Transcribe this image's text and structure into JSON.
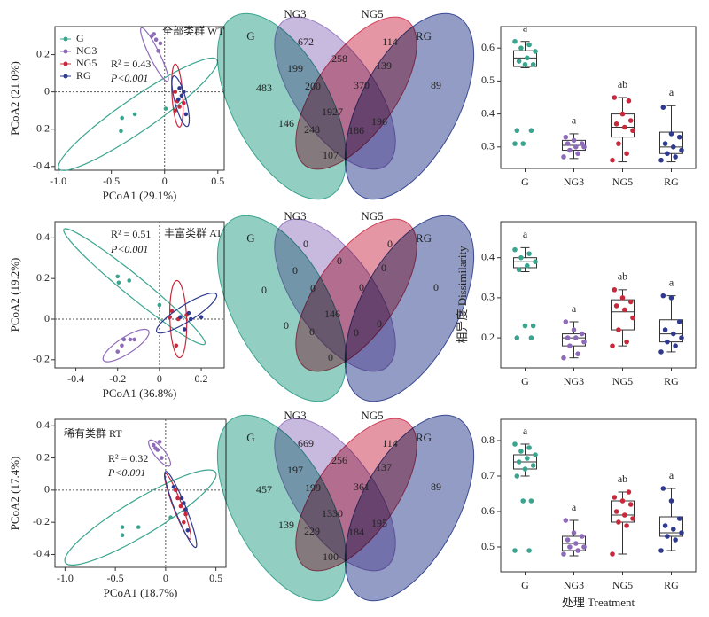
{
  "chart_data": [
    {
      "type": "scatter",
      "xlabel": "PCoA1 (29.1%)",
      "ylabel": "PCoA2 (21.0%)",
      "annotations": [
        "全部类群 WT",
        "R² = 0.43",
        "P<0.001"
      ],
      "legend": "top-left",
      "xlim": [
        -1.03,
        0.56
      ],
      "ylim": [
        -0.42,
        0.35
      ],
      "xticks": [
        {
          "value": -1.0,
          "label": "-1.0"
        },
        -0.5,
        0,
        0.5
      ],
      "yticks": [
        -0.4,
        -0.2,
        0,
        0.2
      ],
      "vline": 0,
      "hline": 0,
      "series": [
        {
          "name": "G",
          "color": "#3aa58f",
          "x": [
            -0.4,
            -0.28,
            -0.41,
            0.01
          ],
          "y": [
            -0.14,
            -0.12,
            -0.21,
            -0.09
          ],
          "ellipse": {
            "cx": -0.25,
            "cy": -0.12,
            "rx": 0.8,
            "ry": 0.1,
            "angle": 21
          }
        },
        {
          "name": "NG3",
          "color": "#8e6bb8",
          "x": [
            -0.12,
            -0.08,
            -0.04,
            -0.1,
            -0.06
          ],
          "y": [
            0.3,
            0.28,
            0.26,
            0.31,
            0.22
          ],
          "ellipse": {
            "cx": -0.095,
            "cy": 0.2,
            "rx": 0.19,
            "ry": 0.04,
            "angle": -48
          }
        },
        {
          "name": "NG5",
          "color": "#c8283b",
          "x": [
            0.1,
            0.12,
            0.14,
            0.1,
            0.18
          ],
          "y": [
            0.0,
            -0.05,
            -0.08,
            -0.1,
            -0.06
          ],
          "ellipse": {
            "cx": 0.12,
            "cy": -0.02,
            "rx": 0.17,
            "ry": 0.05,
            "angle": -83
          }
        },
        {
          "name": "RG",
          "color": "#2f3a8f",
          "x": [
            0.14,
            0.16,
            0.2,
            0.18,
            0.13
          ],
          "y": [
            0.02,
            -0.02,
            -0.12,
            0.0,
            -0.04
          ],
          "ellipse": {
            "cx": 0.15,
            "cy": -0.05,
            "rx": 0.15,
            "ry": 0.05,
            "angle": -63
          }
        }
      ]
    },
    {
      "type": "venn",
      "sets": [
        "G",
        "NG3",
        "NG5",
        "RG"
      ],
      "colors": [
        "#3aa58f",
        "#9b7fc4",
        "#d0405a",
        "#3b4a94"
      ],
      "values": [
        483,
        672,
        114,
        89,
        199,
        258,
        139,
        200,
        370,
        1927,
        146,
        196,
        248,
        186,
        107
      ]
    },
    {
      "type": "box",
      "categories": [
        "G",
        "NG3",
        "NG5",
        "RG"
      ],
      "colors": [
        "#3aa58f",
        "#8e6bb8",
        "#c8283b",
        "#2f3a8f"
      ],
      "ylim": [
        0.235,
        0.665
      ],
      "yticks": [
        0.3,
        0.4,
        0.5,
        0.6
      ],
      "boxes": [
        {
          "q1": 0.544,
          "median": 0.57,
          "q3": 0.592,
          "whisker_low": 0.54,
          "whisker_high": 0.62,
          "points": [
            0.62,
            0.61,
            0.6,
            0.59,
            0.57,
            0.56,
            0.55,
            0.55,
            0.35,
            0.35,
            0.31,
            0.31
          ],
          "letter": "a"
        },
        {
          "q1": 0.29,
          "median": 0.305,
          "q3": 0.32,
          "whisker_low": 0.265,
          "whisker_high": 0.34,
          "points": [
            0.27,
            0.28,
            0.29,
            0.3,
            0.3,
            0.31,
            0.31,
            0.32,
            0.33
          ],
          "letter": "a"
        },
        {
          "q1": 0.33,
          "median": 0.36,
          "q3": 0.4,
          "whisker_low": 0.255,
          "whisker_high": 0.45,
          "points": [
            0.26,
            0.28,
            0.31,
            0.35,
            0.36,
            0.37,
            0.38,
            0.4,
            0.45,
            0.44
          ],
          "letter": "ab"
        },
        {
          "q1": 0.28,
          "median": 0.3,
          "q3": 0.345,
          "whisker_low": 0.255,
          "whisker_high": 0.425,
          "points": [
            0.26,
            0.27,
            0.28,
            0.29,
            0.3,
            0.31,
            0.33,
            0.34,
            0.42
          ],
          "letter": "a"
        }
      ]
    },
    {
      "type": "scatter",
      "xlabel": "PCoA1 (36.8%)",
      "ylabel": "PCoA2 (19.2%)",
      "annotations": [
        "丰富类群 AT",
        "R² = 0.51",
        "P<0.001"
      ],
      "xlim": [
        -0.5,
        0.31
      ],
      "ylim": [
        -0.24,
        0.48
      ],
      "xticks": [
        -0.4,
        -0.2,
        0,
        0.2
      ],
      "yticks": [
        -0.2,
        0,
        0.2,
        0.4
      ],
      "vline": 0,
      "hline": 0,
      "series": [
        {
          "color": "#3aa58f",
          "x": [
            -0.2,
            -0.195,
            -0.145,
            0.0
          ],
          "y": [
            0.21,
            0.18,
            0.19,
            0.07
          ],
          "ellipse": {
            "cx": -0.12,
            "cy": 0.16,
            "rx": 0.44,
            "ry": 0.05,
            "angle": -40
          }
        },
        {
          "color": "#8e6bb8",
          "x": [
            -0.17,
            -0.14,
            -0.12,
            -0.2,
            -0.18
          ],
          "y": [
            -0.1,
            -0.1,
            -0.1,
            -0.16,
            -0.13
          ],
          "ellipse": {
            "cx": -0.16,
            "cy": -0.13,
            "rx": 0.13,
            "ry": 0.04,
            "angle": 34
          }
        },
        {
          "color": "#c8283b",
          "x": [
            0.06,
            0.08,
            0.09,
            0.13,
            0.05
          ],
          "y": [
            0.04,
            -0.13,
            0.0,
            0.02,
            0.01
          ],
          "ellipse": {
            "cx": 0.09,
            "cy": 0.0,
            "rx": 0.19,
            "ry": 0.04,
            "angle": -88
          }
        },
        {
          "color": "#2f3a8f",
          "x": [
            0.1,
            0.15,
            0.2,
            0.12,
            0.14
          ],
          "y": [
            0.01,
            0.0,
            0.01,
            -0.05,
            0.03
          ],
          "ellipse": {
            "cx": 0.13,
            "cy": 0.03,
            "rx": 0.17,
            "ry": 0.04,
            "angle": 33
          }
        }
      ]
    },
    {
      "type": "venn",
      "sets": [
        "G",
        "NG3",
        "NG5",
        "RG"
      ],
      "colors": [
        "#3aa58f",
        "#9b7fc4",
        "#d0405a",
        "#3b4a94"
      ],
      "values": [
        0,
        0,
        0,
        0,
        0,
        0,
        0,
        0,
        0,
        146,
        0,
        0,
        0,
        0,
        0
      ]
    },
    {
      "type": "box",
      "categories": [
        "G",
        "NG3",
        "NG5",
        "RG"
      ],
      "colors": [
        "#3aa58f",
        "#8e6bb8",
        "#c8283b",
        "#2f3a8f"
      ],
      "ylabel": "相异度  Dissimilarity",
      "ylim": [
        0.125,
        0.49
      ],
      "yticks": [
        0.2,
        0.3,
        0.4
      ],
      "boxes": [
        {
          "q1": 0.375,
          "median": 0.39,
          "q3": 0.4,
          "whisker_low": 0.365,
          "whisker_high": 0.425,
          "points": [
            0.42,
            0.41,
            0.4,
            0.39,
            0.38,
            0.37,
            0.23,
            0.23,
            0.2,
            0.2
          ],
          "letter": "a"
        },
        {
          "q1": 0.18,
          "median": 0.2,
          "q3": 0.21,
          "whisker_low": 0.15,
          "whisker_high": 0.24,
          "points": [
            0.15,
            0.16,
            0.18,
            0.19,
            0.2,
            0.2,
            0.21,
            0.22,
            0.24
          ],
          "letter": "a"
        },
        {
          "q1": 0.22,
          "median": 0.265,
          "q3": 0.295,
          "whisker_low": 0.18,
          "whisker_high": 0.32,
          "points": [
            0.18,
            0.19,
            0.22,
            0.25,
            0.27,
            0.28,
            0.29,
            0.3,
            0.32
          ],
          "letter": "ab"
        },
        {
          "q1": 0.19,
          "median": 0.21,
          "q3": 0.245,
          "whisker_low": 0.165,
          "whisker_high": 0.305,
          "points": [
            0.165,
            0.18,
            0.19,
            0.2,
            0.21,
            0.22,
            0.24,
            0.3,
            0.305
          ],
          "letter": "a"
        }
      ]
    },
    {
      "type": "scatter",
      "xlabel": "PCoA1 (18.7%)",
      "ylabel": "PCoA2 (17.4%)",
      "annotations": [
        "稀有类群 RT",
        "R² = 0.32",
        "P<0.001"
      ],
      "xlim": [
        -1.1,
        0.6
      ],
      "ylim": [
        -0.48,
        0.44
      ],
      "xticks": [
        {
          "value": -1.0,
          "label": "-1.0"
        },
        -0.5,
        0,
        0.5
      ],
      "yticks": [
        -0.4,
        -0.2,
        0,
        0.2,
        0.4
      ],
      "vline": 0,
      "hline": 0,
      "series": [
        {
          "color": "#3aa58f",
          "x": [
            -0.43,
            -0.27,
            -0.43,
            0.05
          ],
          "y": [
            -0.23,
            -0.23,
            -0.28,
            -0.17
          ],
          "ellipse": {
            "cx": -0.25,
            "cy": -0.17,
            "rx": 0.8,
            "ry": 0.12,
            "angle": 20
          }
        },
        {
          "color": "#8e6bb8",
          "x": [
            -0.12,
            -0.08,
            -0.06,
            -0.04,
            -0.1
          ],
          "y": [
            0.28,
            0.25,
            0.3,
            0.2,
            0.26
          ],
          "ellipse": {
            "cx": -0.06,
            "cy": 0.23,
            "rx": 0.13,
            "ry": 0.04,
            "angle": -35
          }
        },
        {
          "color": "#c8283b",
          "x": [
            0.1,
            0.12,
            0.15,
            0.2,
            0.18
          ],
          "y": [
            0.0,
            -0.05,
            -0.1,
            -0.15,
            -0.2
          ],
          "ellipse": {
            "cx": 0.12,
            "cy": -0.1,
            "rx": 0.24,
            "ry": 0.04,
            "angle": -58
          }
        },
        {
          "color": "#2f3a8f",
          "x": [
            0.08,
            0.16,
            0.18,
            0.2,
            0.22
          ],
          "y": [
            0.02,
            -0.05,
            -0.08,
            -0.12,
            -0.25
          ],
          "ellipse": {
            "cx": 0.15,
            "cy": -0.12,
            "rx": 0.28,
            "ry": 0.05,
            "angle": -57
          }
        }
      ]
    },
    {
      "type": "venn",
      "sets": [
        "G",
        "NG3",
        "NG5",
        "RG"
      ],
      "colors": [
        "#3aa58f",
        "#9b7fc4",
        "#d0405a",
        "#3b4a94"
      ],
      "values": [
        457,
        669,
        114,
        89,
        197,
        256,
        137,
        199,
        361,
        1330,
        139,
        195,
        229,
        184,
        100
      ]
    },
    {
      "type": "box",
      "categories": [
        "G",
        "NG3",
        "NG5",
        "RG"
      ],
      "colors": [
        "#3aa58f",
        "#8e6bb8",
        "#c8283b",
        "#2f3a8f"
      ],
      "xlabel": "处理 Treatment",
      "ylim": [
        0.43,
        0.86
      ],
      "yticks": [
        0.5,
        0.6,
        0.7,
        0.8
      ],
      "boxes": [
        {
          "q1": 0.72,
          "median": 0.74,
          "q3": 0.76,
          "whisker_low": 0.7,
          "whisker_high": 0.79,
          "points": [
            0.79,
            0.78,
            0.77,
            0.76,
            0.75,
            0.74,
            0.73,
            0.72,
            0.7,
            0.63,
            0.63,
            0.49,
            0.49
          ],
          "letter": "a"
        },
        {
          "q1": 0.49,
          "median": 0.51,
          "q3": 0.53,
          "whisker_low": 0.475,
          "whisker_high": 0.575,
          "points": [
            0.48,
            0.49,
            0.5,
            0.5,
            0.51,
            0.52,
            0.53,
            0.54,
            0.575
          ],
          "letter": "a"
        },
        {
          "q1": 0.57,
          "median": 0.59,
          "q3": 0.63,
          "whisker_low": 0.48,
          "whisker_high": 0.655,
          "points": [
            0.48,
            0.56,
            0.57,
            0.58,
            0.59,
            0.6,
            0.62,
            0.63,
            0.64,
            0.655
          ],
          "letter": "ab"
        },
        {
          "q1": 0.53,
          "median": 0.54,
          "q3": 0.585,
          "whisker_low": 0.49,
          "whisker_high": 0.665,
          "points": [
            0.49,
            0.52,
            0.53,
            0.54,
            0.55,
            0.56,
            0.58,
            0.63,
            0.665
          ],
          "letter": "a"
        }
      ]
    }
  ]
}
